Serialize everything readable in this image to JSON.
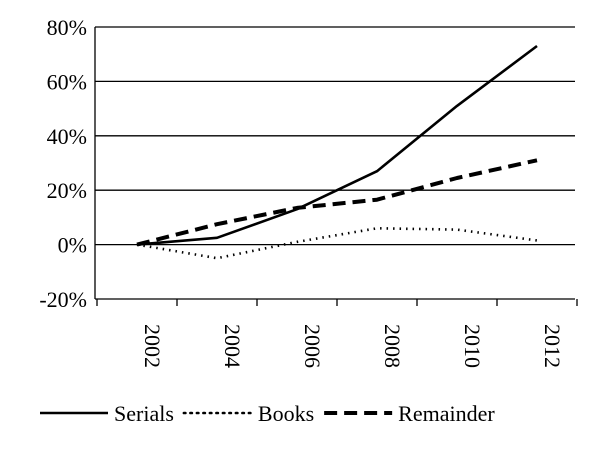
{
  "chart_data": {
    "type": "line",
    "title": "",
    "xlabel": "",
    "ylabel": "",
    "x": [
      2002,
      2004,
      2006,
      2008,
      2010,
      2012
    ],
    "x_tick_labels": [
      "2002",
      "2004",
      "2006",
      "2008",
      "2010",
      "2012"
    ],
    "y_tick_values": [
      -20,
      0,
      20,
      40,
      60,
      80
    ],
    "y_tick_labels": [
      "-20%",
      "0%",
      "20%",
      "40%",
      "60%",
      "80%"
    ],
    "ylim": [
      -20,
      80
    ],
    "grid": "horizontal",
    "legend_position": "bottom",
    "series": [
      {
        "name": "Serials",
        "style": "solid",
        "color": "#000000",
        "values": [
          0,
          2.5,
          13,
          27,
          51,
          73
        ]
      },
      {
        "name": "Books",
        "style": "dotted",
        "color": "#000000",
        "values": [
          0,
          -5,
          1,
          6,
          5.5,
          1.5
        ]
      },
      {
        "name": "Remainder",
        "style": "dashed",
        "color": "#000000",
        "values": [
          0,
          7.5,
          13.5,
          16.5,
          24.5,
          31
        ]
      }
    ]
  }
}
